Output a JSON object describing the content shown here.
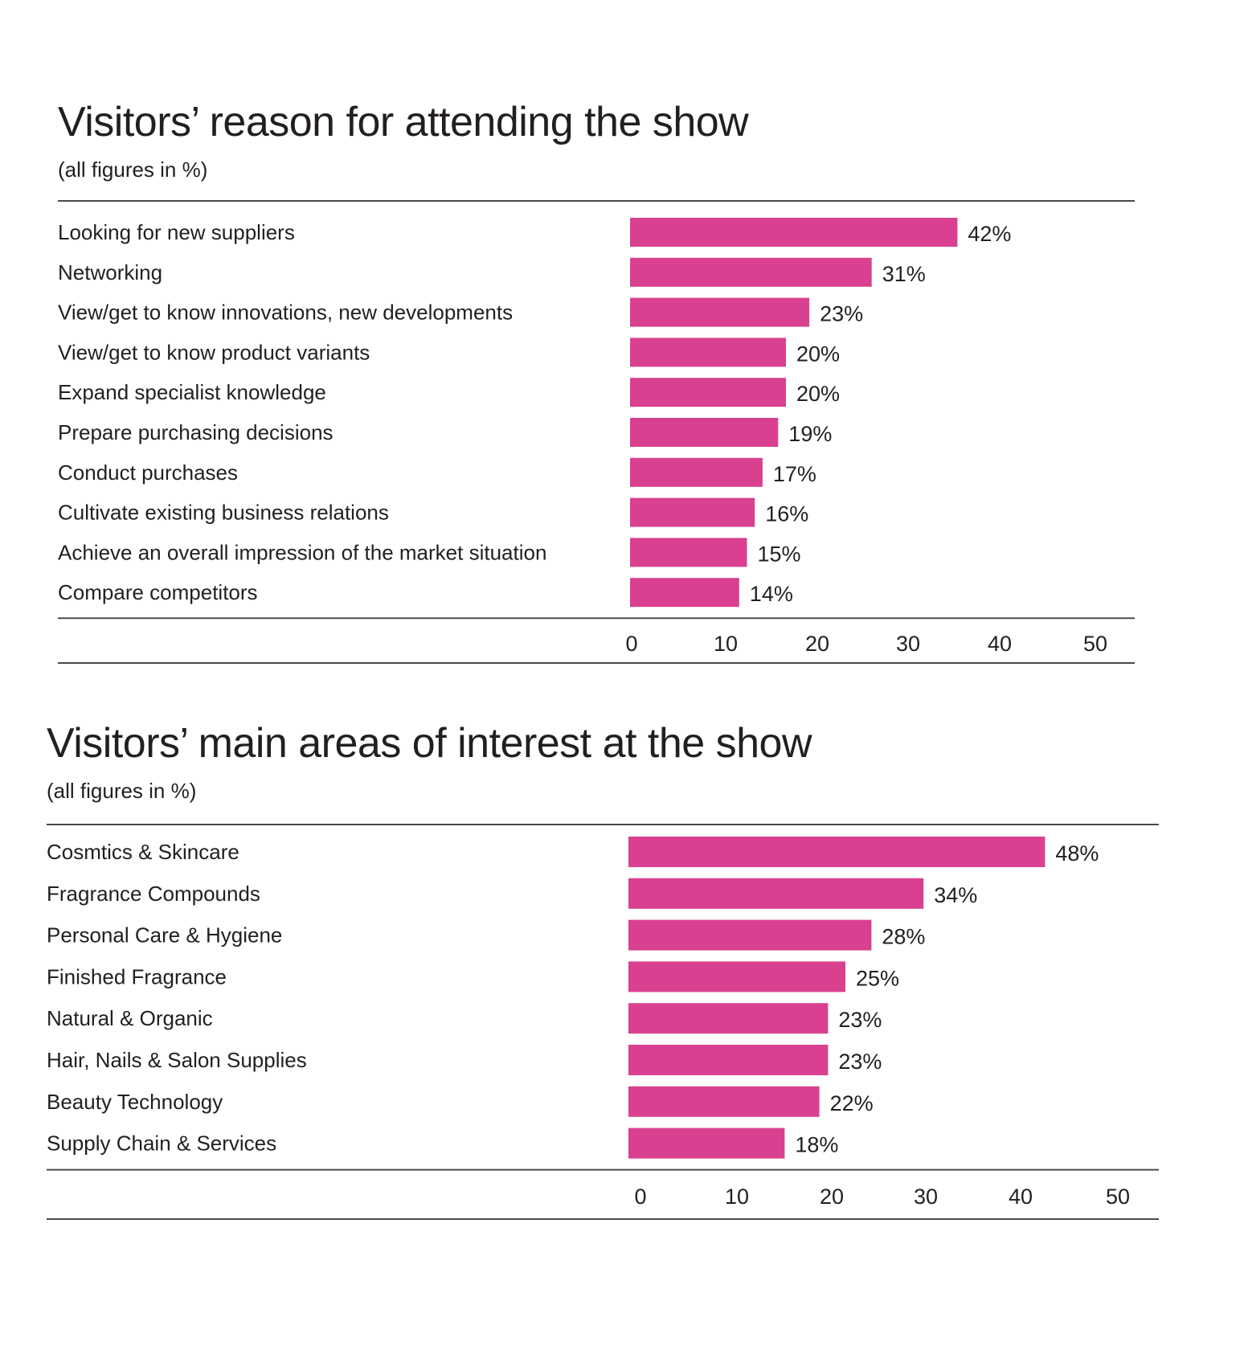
{
  "colors": {
    "bar": "#d9408f",
    "rule": "#4a4a4a",
    "text": "#231f20"
  },
  "chart_data": [
    {
      "type": "bar",
      "orientation": "horizontal",
      "title": "Visitors’ reason for attending the show",
      "subtitle": "(all figures in %)",
      "categories": [
        "Looking for new suppliers",
        "Networking",
        "View/get to know innovations, new developments",
        "View/get to know product variants",
        "Expand specialist knowledge",
        "Prepare purchasing decisions",
        "Conduct purchases",
        "Cultivate existing business relations",
        "Achieve an overall impression of the market situation",
        "Compare competitors"
      ],
      "values": [
        42,
        31,
        23,
        20,
        20,
        19,
        17,
        16,
        15,
        14
      ],
      "value_labels": [
        "42%",
        "31%",
        "23%",
        "20%",
        "20%",
        "19%",
        "17%",
        "16%",
        "15%",
        "14%"
      ],
      "xlim": [
        0,
        50
      ],
      "xticks": [
        "0",
        "10",
        "20",
        "30",
        "40",
        "50"
      ],
      "xlabel": "",
      "ylabel": "",
      "grid": false
    },
    {
      "type": "bar",
      "orientation": "horizontal",
      "title": "Visitors’ main areas of interest at the show",
      "subtitle": "(all figures in %)",
      "categories": [
        "Cosmtics & Skincare",
        "Fragrance Compounds",
        "Personal Care & Hygiene",
        "Finished Fragrance",
        "Natural & Organic",
        "Hair, Nails & Salon Supplies",
        "Beauty Technology",
        "Supply Chain & Services"
      ],
      "values": [
        48,
        34,
        28,
        25,
        23,
        23,
        22,
        18
      ],
      "value_labels": [
        "48%",
        "34%",
        "28%",
        "25%",
        "23%",
        "23%",
        "22%",
        "18%"
      ],
      "xlim": [
        0,
        50
      ],
      "xticks": [
        "0",
        "10",
        "20",
        "30",
        "40",
        "50"
      ],
      "xlabel": "",
      "ylabel": "",
      "grid": false
    }
  ]
}
